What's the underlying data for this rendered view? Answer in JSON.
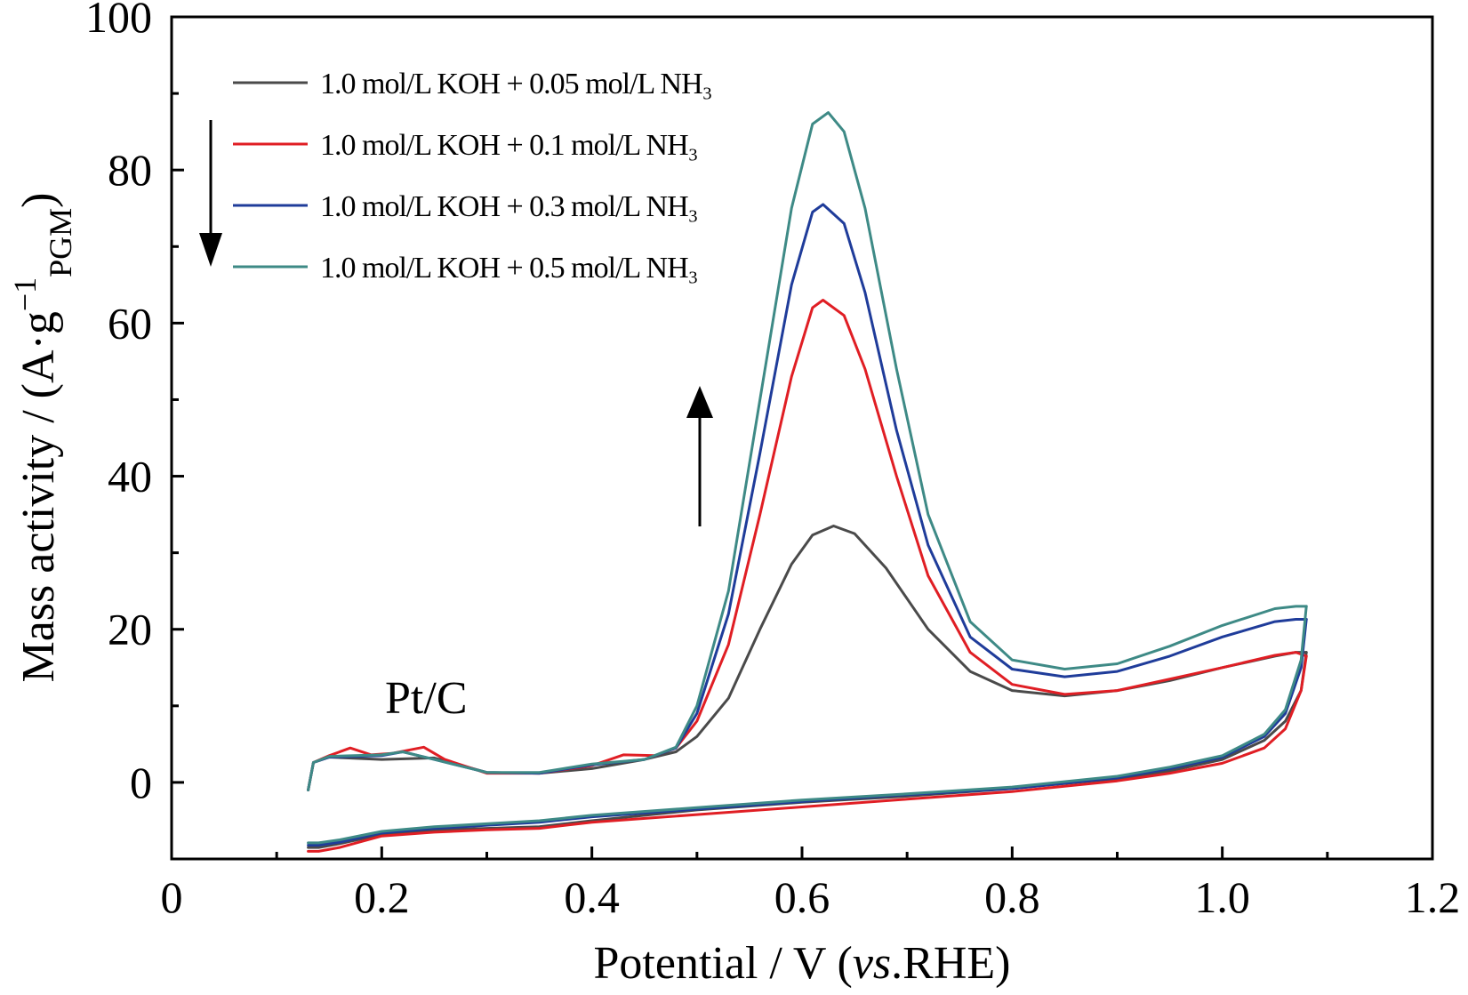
{
  "chart_data": {
    "type": "line",
    "title": "",
    "xlabel": {
      "prefix": "Potential / V (",
      "italic": "vs",
      "suffix": ".RHE)"
    },
    "ylabel": {
      "prefix": "Mass activity / (A·g",
      "sup": "−1",
      "sub": "PGM",
      "suffix": ")"
    },
    "xlim": [
      0,
      1.2
    ],
    "ylim": [
      -10,
      100
    ],
    "xticks": [
      "0",
      "0.2",
      "0.4",
      "0.6",
      "0.8",
      "1.0",
      "1.2"
    ],
    "xtick_values": [
      0,
      0.2,
      0.4,
      0.6,
      0.8,
      1.0,
      1.2
    ],
    "yticks": [
      "0",
      "20",
      "40",
      "60",
      "80",
      "100"
    ],
    "ytick_values": [
      0,
      20,
      40,
      60,
      80,
      100
    ],
    "grid": false,
    "legend_position": "top-left",
    "annotation": "Pt/C",
    "series": [
      {
        "name": "1.0 mol/L KOH + 0.05 mol/L NH₃",
        "color": "#4a4a4a",
        "peak_x": 0.63,
        "peak_y": 33.5,
        "forward": [
          [
            0.13,
            -1
          ],
          [
            0.135,
            2.6
          ],
          [
            0.15,
            3.3
          ],
          [
            0.2,
            3.0
          ],
          [
            0.25,
            3.2
          ],
          [
            0.3,
            1.3
          ],
          [
            0.35,
            1.2
          ],
          [
            0.4,
            1.8
          ],
          [
            0.45,
            3.0
          ],
          [
            0.48,
            4.0
          ],
          [
            0.5,
            6.0
          ],
          [
            0.53,
            11.0
          ],
          [
            0.56,
            20.0
          ],
          [
            0.59,
            28.5
          ],
          [
            0.61,
            32.3
          ],
          [
            0.63,
            33.5
          ],
          [
            0.65,
            32.5
          ],
          [
            0.68,
            28.0
          ],
          [
            0.72,
            20.0
          ],
          [
            0.76,
            14.5
          ],
          [
            0.8,
            12.0
          ],
          [
            0.85,
            11.3
          ],
          [
            0.9,
            12.0
          ],
          [
            0.95,
            13.3
          ],
          [
            1.0,
            15.0
          ],
          [
            1.05,
            16.5
          ],
          [
            1.07,
            17.0
          ],
          [
            1.08,
            17.0
          ]
        ],
        "reverse": [
          [
            1.08,
            17.0
          ],
          [
            1.075,
            12.0
          ],
          [
            1.06,
            8.0
          ],
          [
            1.04,
            5.5
          ],
          [
            1.0,
            3.0
          ],
          [
            0.95,
            1.5
          ],
          [
            0.9,
            0.5
          ],
          [
            0.8,
            -0.8
          ],
          [
            0.7,
            -1.8
          ],
          [
            0.6,
            -2.6
          ],
          [
            0.5,
            -3.6
          ],
          [
            0.4,
            -5.0
          ],
          [
            0.35,
            -5.8
          ],
          [
            0.3,
            -6.0
          ],
          [
            0.25,
            -6.2
          ],
          [
            0.2,
            -6.8
          ],
          [
            0.16,
            -8.0
          ],
          [
            0.14,
            -8.5
          ],
          [
            0.13,
            -8.5
          ]
        ]
      },
      {
        "name": "1.0 mol/L KOH + 0.1 mol/L NH₃",
        "color": "#e01e24",
        "peak_x": 0.62,
        "peak_y": 63,
        "forward": [
          [
            0.13,
            -1
          ],
          [
            0.135,
            2.6
          ],
          [
            0.15,
            3.5
          ],
          [
            0.17,
            4.5
          ],
          [
            0.19,
            3.6
          ],
          [
            0.21,
            3.8
          ],
          [
            0.24,
            4.6
          ],
          [
            0.26,
            3.0
          ],
          [
            0.3,
            1.2
          ],
          [
            0.35,
            1.2
          ],
          [
            0.4,
            2.2
          ],
          [
            0.43,
            3.6
          ],
          [
            0.46,
            3.5
          ],
          [
            0.48,
            4.5
          ],
          [
            0.5,
            8.0
          ],
          [
            0.53,
            18.0
          ],
          [
            0.56,
            35.0
          ],
          [
            0.59,
            53.0
          ],
          [
            0.61,
            62.0
          ],
          [
            0.62,
            63.0
          ],
          [
            0.64,
            61.0
          ],
          [
            0.66,
            54.0
          ],
          [
            0.69,
            40.0
          ],
          [
            0.72,
            27.0
          ],
          [
            0.76,
            17.0
          ],
          [
            0.8,
            12.8
          ],
          [
            0.85,
            11.5
          ],
          [
            0.9,
            12.0
          ],
          [
            0.95,
            13.5
          ],
          [
            1.0,
            15.0
          ],
          [
            1.05,
            16.6
          ],
          [
            1.07,
            17.0
          ],
          [
            1.08,
            16.5
          ]
        ],
        "reverse": [
          [
            1.08,
            16.5
          ],
          [
            1.075,
            12.0
          ],
          [
            1.06,
            7.0
          ],
          [
            1.04,
            4.5
          ],
          [
            1.0,
            2.5
          ],
          [
            0.95,
            1.2
          ],
          [
            0.9,
            0.2
          ],
          [
            0.8,
            -1.2
          ],
          [
            0.7,
            -2.2
          ],
          [
            0.6,
            -3.2
          ],
          [
            0.5,
            -4.2
          ],
          [
            0.4,
            -5.2
          ],
          [
            0.35,
            -6.0
          ],
          [
            0.3,
            -6.2
          ],
          [
            0.25,
            -6.5
          ],
          [
            0.2,
            -7.0
          ],
          [
            0.16,
            -8.5
          ],
          [
            0.14,
            -9.0
          ],
          [
            0.13,
            -9.0
          ]
        ]
      },
      {
        "name": "1.0 mol/L KOH + 0.3 mol/L NH₃",
        "color": "#1f3c9a",
        "peak_x": 0.62,
        "peak_y": 75.5,
        "forward": [
          [
            0.13,
            -1
          ],
          [
            0.135,
            2.6
          ],
          [
            0.15,
            3.3
          ],
          [
            0.2,
            3.5
          ],
          [
            0.22,
            4.0
          ],
          [
            0.25,
            3.0
          ],
          [
            0.3,
            1.3
          ],
          [
            0.35,
            1.2
          ],
          [
            0.4,
            2.3
          ],
          [
            0.45,
            3.0
          ],
          [
            0.48,
            4.5
          ],
          [
            0.5,
            9.0
          ],
          [
            0.53,
            22.0
          ],
          [
            0.56,
            43.0
          ],
          [
            0.59,
            65.0
          ],
          [
            0.61,
            74.5
          ],
          [
            0.62,
            75.5
          ],
          [
            0.64,
            73.0
          ],
          [
            0.66,
            64.0
          ],
          [
            0.69,
            46.0
          ],
          [
            0.72,
            31.0
          ],
          [
            0.76,
            19.0
          ],
          [
            0.8,
            14.8
          ],
          [
            0.85,
            13.8
          ],
          [
            0.9,
            14.5
          ],
          [
            0.95,
            16.5
          ],
          [
            1.0,
            19.0
          ],
          [
            1.05,
            21.0
          ],
          [
            1.07,
            21.3
          ],
          [
            1.08,
            21.3
          ]
        ],
        "reverse": [
          [
            1.08,
            21.3
          ],
          [
            1.075,
            15.0
          ],
          [
            1.06,
            9.0
          ],
          [
            1.04,
            6.0
          ],
          [
            1.0,
            3.3
          ],
          [
            0.95,
            1.8
          ],
          [
            0.9,
            0.6
          ],
          [
            0.8,
            -0.8
          ],
          [
            0.7,
            -1.6
          ],
          [
            0.6,
            -2.5
          ],
          [
            0.5,
            -3.5
          ],
          [
            0.4,
            -4.5
          ],
          [
            0.35,
            -5.2
          ],
          [
            0.3,
            -5.6
          ],
          [
            0.25,
            -6.0
          ],
          [
            0.2,
            -6.6
          ],
          [
            0.16,
            -7.8
          ],
          [
            0.14,
            -8.2
          ],
          [
            0.13,
            -8.2
          ]
        ]
      },
      {
        "name": "1.0 mol/L KOH + 0.5 mol/L NH₃",
        "color": "#3e8a86",
        "peak_x": 0.625,
        "peak_y": 87.5,
        "forward": [
          [
            0.13,
            -1
          ],
          [
            0.135,
            2.6
          ],
          [
            0.15,
            3.4
          ],
          [
            0.2,
            3.6
          ],
          [
            0.22,
            4.0
          ],
          [
            0.25,
            3.0
          ],
          [
            0.3,
            1.3
          ],
          [
            0.35,
            1.3
          ],
          [
            0.4,
            2.4
          ],
          [
            0.45,
            3.0
          ],
          [
            0.48,
            4.6
          ],
          [
            0.5,
            10.0
          ],
          [
            0.53,
            25.0
          ],
          [
            0.56,
            50.0
          ],
          [
            0.59,
            75.0
          ],
          [
            0.61,
            86.0
          ],
          [
            0.625,
            87.5
          ],
          [
            0.64,
            85.0
          ],
          [
            0.66,
            75.0
          ],
          [
            0.69,
            54.0
          ],
          [
            0.72,
            35.0
          ],
          [
            0.76,
            21.0
          ],
          [
            0.8,
            16.0
          ],
          [
            0.85,
            14.8
          ],
          [
            0.9,
            15.5
          ],
          [
            0.95,
            17.8
          ],
          [
            1.0,
            20.5
          ],
          [
            1.05,
            22.7
          ],
          [
            1.07,
            23.0
          ],
          [
            1.08,
            23.0
          ]
        ],
        "reverse": [
          [
            1.08,
            23.0
          ],
          [
            1.075,
            16.0
          ],
          [
            1.06,
            9.5
          ],
          [
            1.04,
            6.3
          ],
          [
            1.0,
            3.5
          ],
          [
            0.95,
            2.0
          ],
          [
            0.9,
            0.8
          ],
          [
            0.8,
            -0.6
          ],
          [
            0.7,
            -1.5
          ],
          [
            0.6,
            -2.3
          ],
          [
            0.5,
            -3.3
          ],
          [
            0.4,
            -4.3
          ],
          [
            0.35,
            -5.0
          ],
          [
            0.3,
            -5.4
          ],
          [
            0.25,
            -5.8
          ],
          [
            0.2,
            -6.4
          ],
          [
            0.16,
            -7.5
          ],
          [
            0.14,
            -7.9
          ],
          [
            0.13,
            -7.9
          ]
        ]
      }
    ]
  }
}
